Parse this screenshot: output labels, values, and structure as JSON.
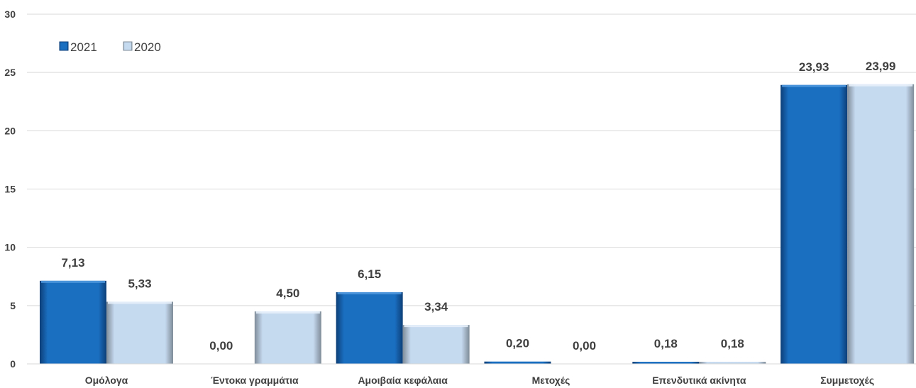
{
  "chart_data": {
    "type": "bar",
    "categories": [
      "Ομόλογα",
      "Έντοκα γραμμάτια",
      "Αμοιβαία κεφάλαια",
      "Μετοχές",
      "Επενδυτικά ακίνητα",
      "Συμμετοχές"
    ],
    "series": [
      {
        "name": "2021",
        "color": "#1a6fc1",
        "values": [
          7.13,
          0.0,
          6.15,
          0.2,
          0.18,
          23.93
        ],
        "labels": [
          "7,13",
          "0,00",
          "6,15",
          "0,20",
          "0,18",
          "23,93"
        ]
      },
      {
        "name": "2020",
        "color": "#c5d9ef",
        "values": [
          5.33,
          4.5,
          3.34,
          0.0,
          0.18,
          23.99
        ],
        "labels": [
          "5,33",
          "4,50",
          "3,34",
          "0,00",
          "0,18",
          "23,99"
        ]
      }
    ],
    "yticks": [
      0,
      5,
      10,
      15,
      20,
      25,
      30
    ],
    "ylim": [
      0,
      30
    ],
    "grid": true,
    "legend_position": "top-left"
  }
}
